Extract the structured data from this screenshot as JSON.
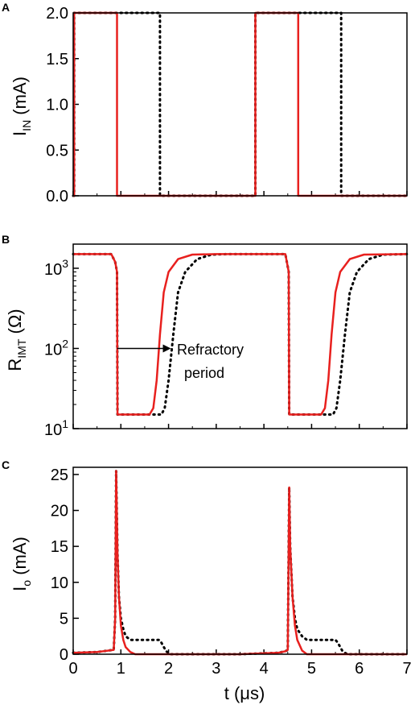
{
  "chart_data": [
    {
      "panel": "A",
      "type": "line",
      "ylabel_main": "I",
      "ylabel_sub": "IN",
      "ylabel_unit": " (mA)",
      "xlim": [
        0,
        7
      ],
      "ylim": [
        0,
        2.0
      ],
      "yticks": [
        "0.0",
        "0.5",
        "1.0",
        "1.5",
        "2.0"
      ],
      "yticks_values": [
        0,
        0.5,
        1.0,
        1.5,
        2.0
      ],
      "series": [
        {
          "style": "solid",
          "color": "#e8201e",
          "x": [
            0,
            0.02,
            0.02,
            0.92,
            0.92,
            3.82,
            3.82,
            4.72,
            4.72,
            7
          ],
          "y": [
            0,
            0,
            2.0,
            2.0,
            0,
            0,
            2.0,
            2.0,
            0,
            0
          ]
        },
        {
          "style": "dotted",
          "color": "#000000",
          "x": [
            0,
            0.02,
            0.02,
            1.82,
            1.82,
            3.82,
            3.82,
            5.62,
            5.62,
            7
          ],
          "y": [
            0,
            0,
            2.0,
            2.0,
            0,
            0,
            2.0,
            2.0,
            0,
            0
          ]
        }
      ]
    },
    {
      "panel": "B",
      "type": "line",
      "yscale": "log",
      "ylabel_main": "R",
      "ylabel_sub": "IMT",
      "ylabel_unit": " (Ω)",
      "xlim": [
        0,
        7
      ],
      "ylim": [
        10,
        2000
      ],
      "yticks": [
        {
          "base": "10",
          "exp": "1",
          "value": 10
        },
        {
          "base": "10",
          "exp": "2",
          "value": 100
        },
        {
          "base": "10",
          "exp": "3",
          "value": 1000
        }
      ],
      "annotation": {
        "line1": "Refractory",
        "line2": "period",
        "arrow_from_x": 0.92,
        "arrow_to_x": 2.05,
        "arrow_y": 100
      },
      "series": [
        {
          "style": "solid",
          "color": "#e8201e",
          "x": [
            0,
            0.8,
            0.88,
            0.92,
            0.93,
            1.6,
            1.68,
            1.75,
            1.82,
            1.9,
            2.0,
            2.2,
            2.5,
            3.0,
            4.45,
            4.52,
            4.53,
            5.2,
            5.28,
            5.35,
            5.42,
            5.5,
            5.6,
            5.8,
            6.1,
            7
          ],
          "y": [
            1500,
            1500,
            1200,
            900,
            15,
            15,
            18,
            40,
            150,
            500,
            900,
            1300,
            1480,
            1500,
            1500,
            900,
            15,
            15,
            18,
            40,
            150,
            500,
            900,
            1300,
            1480,
            1500
          ]
        },
        {
          "style": "dotted",
          "color": "#000000",
          "x": [
            0,
            0.8,
            0.88,
            0.92,
            0.93,
            1.85,
            1.92,
            2.0,
            2.1,
            2.2,
            2.35,
            2.6,
            2.9,
            3.2,
            4.45,
            4.52,
            4.53,
            5.45,
            5.52,
            5.6,
            5.7,
            5.8,
            5.95,
            6.2,
            6.5,
            7
          ],
          "y": [
            1500,
            1500,
            1200,
            900,
            15,
            15,
            18,
            40,
            150,
            500,
            900,
            1300,
            1480,
            1500,
            1500,
            900,
            15,
            15,
            18,
            40,
            150,
            500,
            900,
            1300,
            1480,
            1500
          ]
        }
      ]
    },
    {
      "panel": "C",
      "type": "line",
      "ylabel_main": "I",
      "ylabel_sub": "o",
      "ylabel_unit": " (mA)",
      "xlabel": "t (μs)",
      "xlim": [
        0,
        7
      ],
      "ylim": [
        0,
        26
      ],
      "xticks": [
        "0",
        "1",
        "2",
        "3",
        "4",
        "5",
        "6",
        "7"
      ],
      "xticks_values": [
        0,
        1,
        2,
        3,
        4,
        5,
        6,
        7
      ],
      "yticks": [
        "0",
        "5",
        "10",
        "15",
        "20",
        "25"
      ],
      "yticks_values": [
        0,
        5,
        10,
        15,
        20,
        25
      ],
      "series": [
        {
          "style": "solid",
          "color": "#e8201e",
          "x": [
            0,
            0.5,
            0.85,
            0.88,
            0.9,
            0.93,
            0.96,
            1.0,
            1.05,
            1.1,
            1.2,
            1.3,
            3.5,
            4.3,
            4.45,
            4.5,
            4.53,
            4.55,
            4.6,
            4.65,
            4.7,
            4.8,
            4.9,
            7
          ],
          "y": [
            0.2,
            0.3,
            0.6,
            5,
            25.5,
            14,
            8,
            4,
            2,
            1,
            0.3,
            0,
            0,
            0.2,
            0.4,
            0.6,
            23.2,
            15,
            8,
            4,
            2,
            0.5,
            0,
            0
          ]
        },
        {
          "style": "dotted",
          "color": "#000000",
          "x": [
            0,
            0.5,
            0.85,
            0.88,
            0.9,
            0.93,
            0.96,
            1.0,
            1.05,
            1.1,
            1.2,
            1.3,
            1.8,
            1.85,
            1.95,
            2.05,
            3.5,
            4.3,
            4.45,
            4.5,
            4.53,
            4.55,
            4.6,
            4.65,
            4.7,
            4.8,
            4.9,
            5.5,
            5.55,
            5.65,
            5.75,
            7
          ],
          "y": [
            0.2,
            0.3,
            0.6,
            5,
            25.5,
            14,
            8,
            5,
            3.5,
            2.5,
            2,
            2,
            2,
            1.6,
            0.4,
            0,
            0,
            0.2,
            0.4,
            0.6,
            23.2,
            15,
            8,
            5,
            3.5,
            2.5,
            2,
            2,
            1.6,
            0.4,
            0,
            0
          ]
        }
      ]
    }
  ]
}
